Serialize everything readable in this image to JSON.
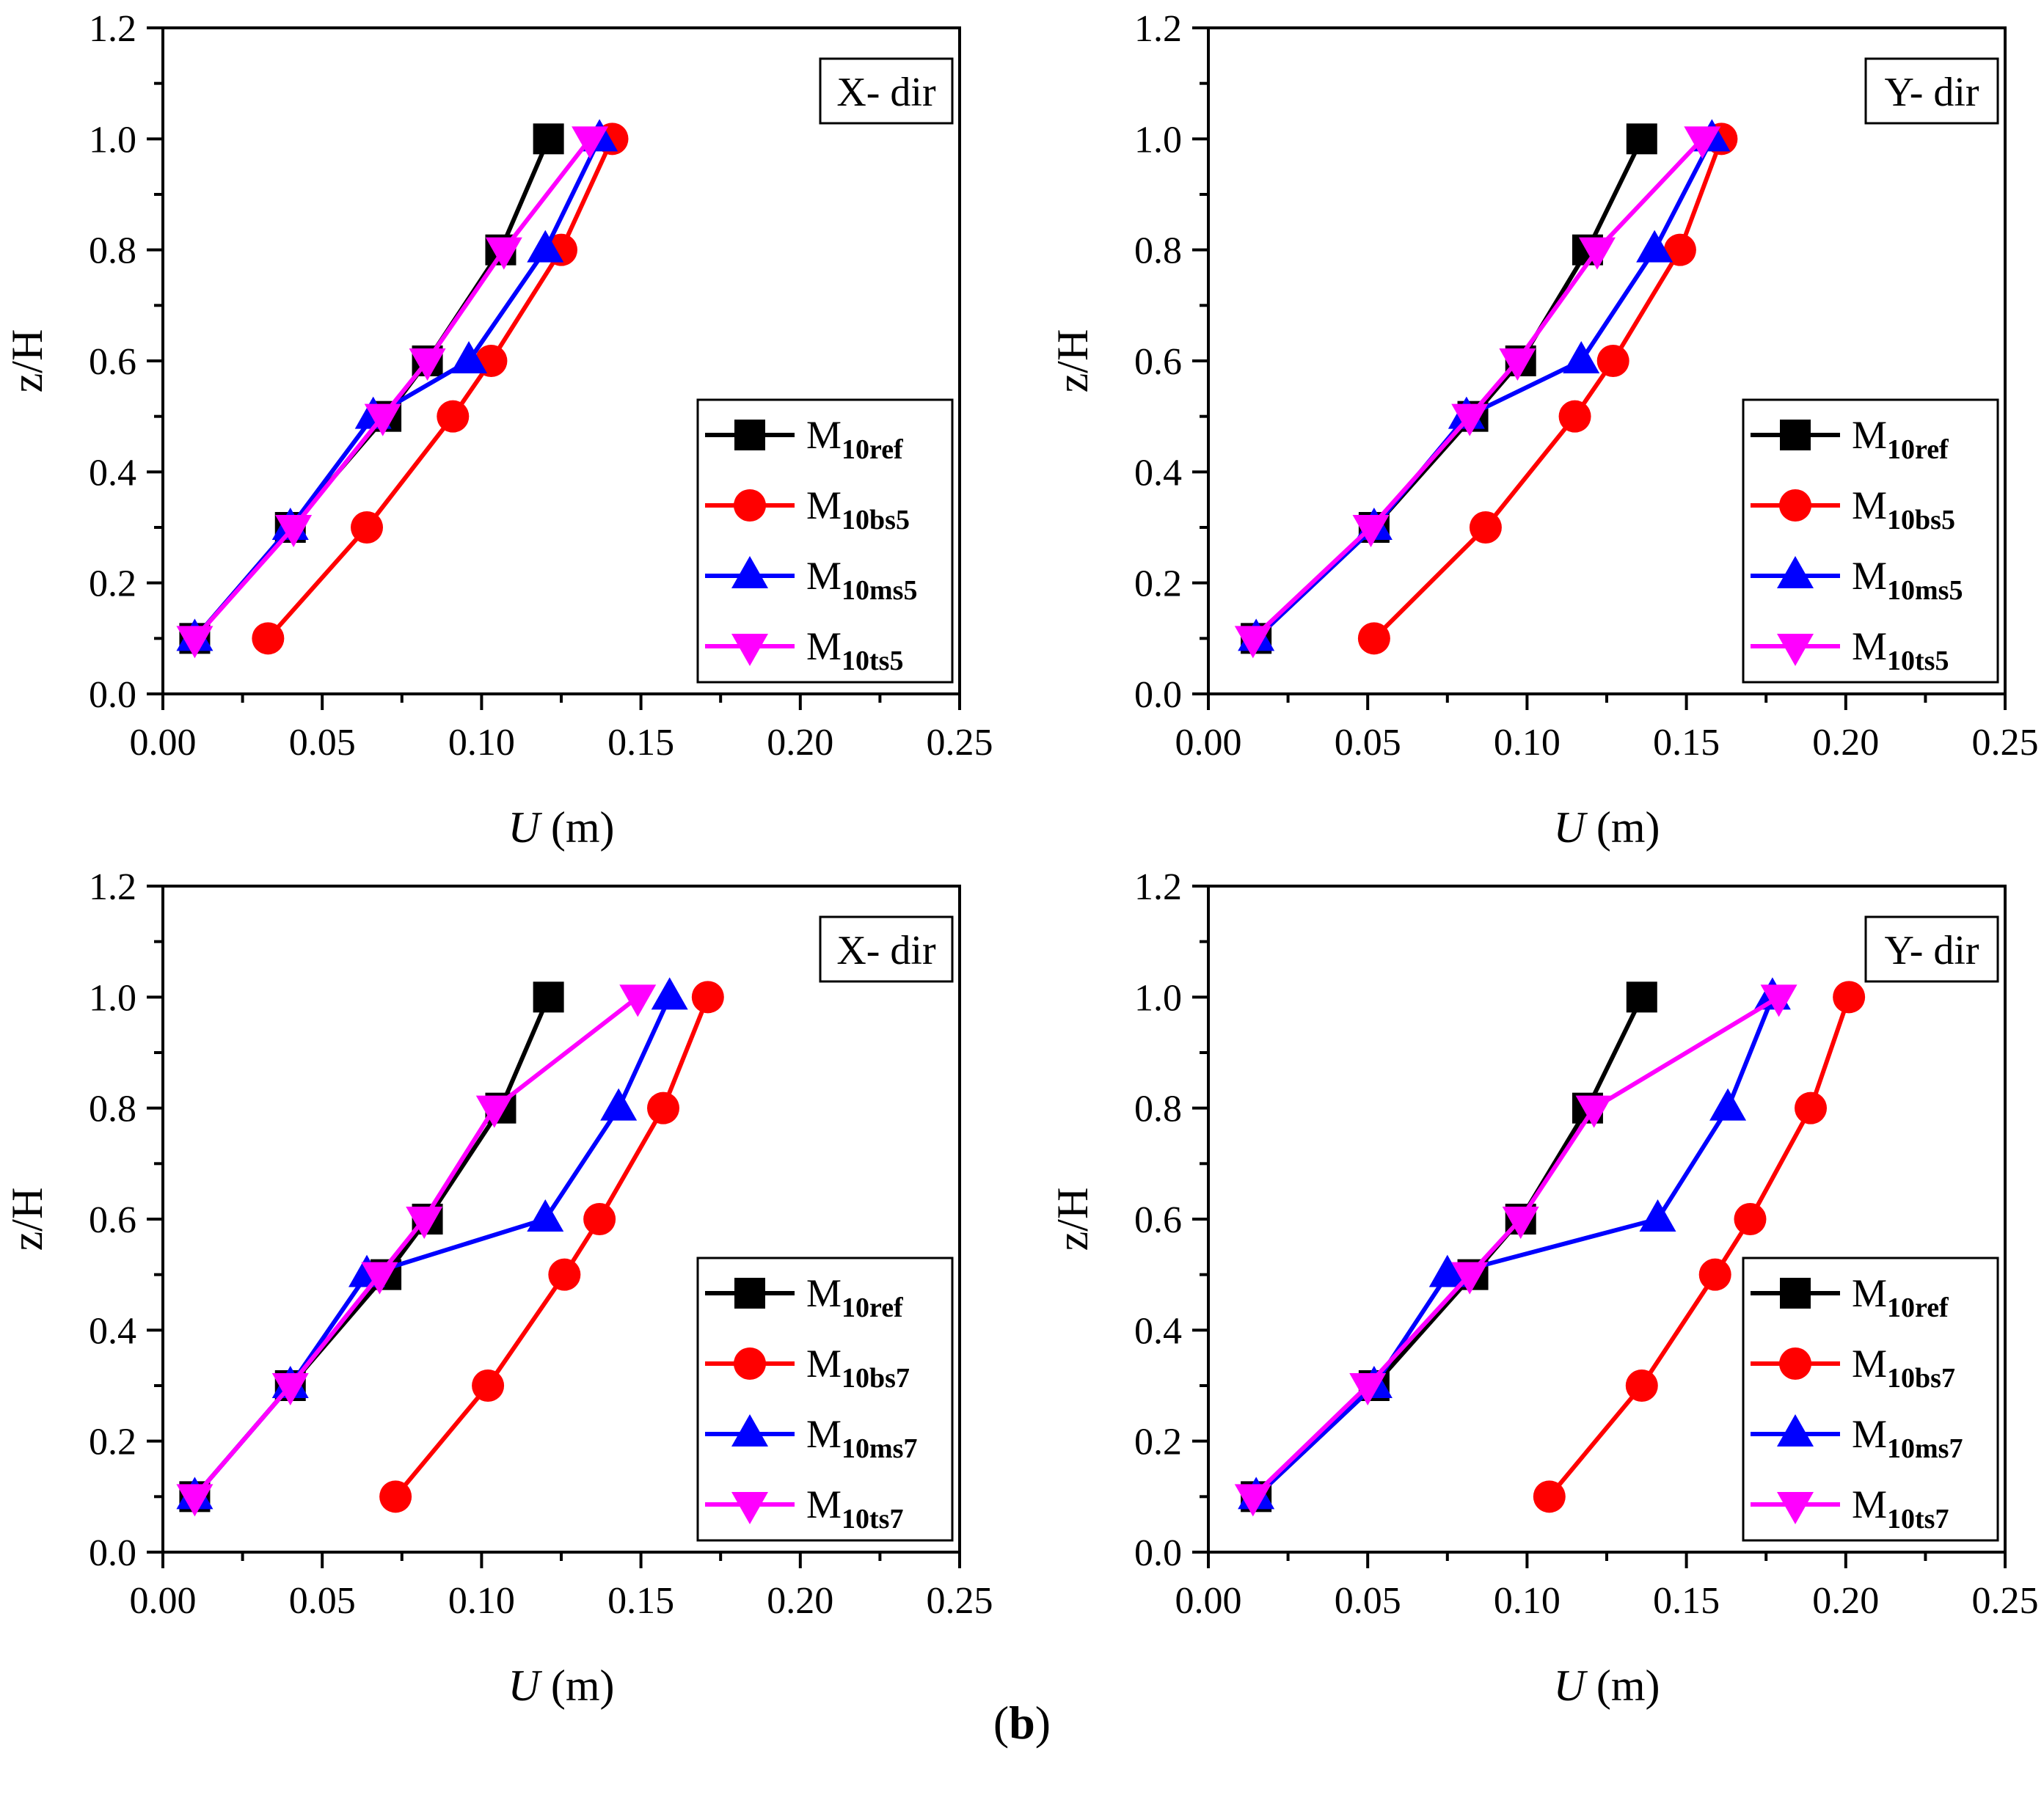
{
  "caption": {
    "open": "(",
    "letter": "b",
    "close": ")"
  },
  "colors": {
    "ref": "#000000",
    "bs": "#ff0000",
    "ms": "#0000ff",
    "ts": "#ff00ff"
  },
  "chart_data": [
    {
      "type": "line",
      "direction_label": "X- dir",
      "xlabel_italic": "U",
      "xlabel_unit": " (m)",
      "ylabel": "z/H",
      "xlim": [
        0,
        0.25
      ],
      "ylim": [
        0,
        1.2
      ],
      "xticks": [
        "0.00",
        "0.05",
        "0.10",
        "0.15",
        "0.20",
        "0.25"
      ],
      "yticks": [
        "0.0",
        "0.2",
        "0.4",
        "0.6",
        "0.8",
        "1.0",
        "1.2"
      ],
      "series": [
        {
          "base": "M",
          "sub": "10ref",
          "marker": "square",
          "color_key": "ref",
          "x": [
            0.01,
            0.04,
            0.07,
            0.083,
            0.106,
            0.121
          ],
          "y": [
            0.1,
            0.3,
            0.5,
            0.6,
            0.8,
            1.0
          ]
        },
        {
          "base": "M",
          "sub": "10bs5",
          "marker": "circle",
          "color_key": "bs",
          "x": [
            0.033,
            0.064,
            0.091,
            0.103,
            0.125,
            0.141
          ],
          "y": [
            0.1,
            0.3,
            0.5,
            0.6,
            0.8,
            1.0
          ]
        },
        {
          "base": "M",
          "sub": "10ms5",
          "marker": "triangle-up",
          "color_key": "ms",
          "x": [
            0.01,
            0.04,
            0.066,
            0.096,
            0.12,
            0.137
          ],
          "y": [
            0.1,
            0.3,
            0.5,
            0.6,
            0.8,
            1.0
          ]
        },
        {
          "base": "M",
          "sub": "10ts5",
          "marker": "triangle-down",
          "color_key": "ts",
          "x": [
            0.01,
            0.041,
            0.069,
            0.083,
            0.107,
            0.134
          ],
          "y": [
            0.1,
            0.3,
            0.5,
            0.6,
            0.8,
            1.0
          ]
        }
      ]
    },
    {
      "type": "line",
      "direction_label": "Y- dir",
      "xlabel_italic": "U",
      "xlabel_unit": " (m)",
      "ylabel": "z/H",
      "xlim": [
        0,
        0.25
      ],
      "ylim": [
        0,
        1.2
      ],
      "xticks": [
        "0.00",
        "0.05",
        "0.10",
        "0.15",
        "0.20",
        "0.25"
      ],
      "yticks": [
        "0.0",
        "0.2",
        "0.4",
        "0.6",
        "0.8",
        "1.0",
        "1.2"
      ],
      "series": [
        {
          "base": "M",
          "sub": "10ref",
          "marker": "square",
          "color_key": "ref",
          "x": [
            0.015,
            0.052,
            0.083,
            0.098,
            0.119,
            0.136
          ],
          "y": [
            0.1,
            0.3,
            0.5,
            0.6,
            0.8,
            1.0
          ]
        },
        {
          "base": "M",
          "sub": "10bs5",
          "marker": "circle",
          "color_key": "bs",
          "x": [
            0.052,
            0.087,
            0.115,
            0.127,
            0.148,
            0.161
          ],
          "y": [
            0.1,
            0.3,
            0.5,
            0.6,
            0.8,
            1.0
          ]
        },
        {
          "base": "M",
          "sub": "10ms5",
          "marker": "triangle-up",
          "color_key": "ms",
          "x": [
            0.015,
            0.052,
            0.081,
            0.117,
            0.14,
            0.158
          ],
          "y": [
            0.1,
            0.3,
            0.5,
            0.6,
            0.8,
            1.0
          ]
        },
        {
          "base": "M",
          "sub": "10ts5",
          "marker": "triangle-down",
          "color_key": "ts",
          "x": [
            0.014,
            0.051,
            0.082,
            0.097,
            0.122,
            0.155
          ],
          "y": [
            0.1,
            0.3,
            0.5,
            0.6,
            0.8,
            1.0
          ]
        }
      ]
    },
    {
      "type": "line",
      "direction_label": "X- dir",
      "xlabel_italic": "U",
      "xlabel_unit": " (m)",
      "ylabel": "z/H",
      "xlim": [
        0,
        0.25
      ],
      "ylim": [
        0,
        1.2
      ],
      "xticks": [
        "0.00",
        "0.05",
        "0.10",
        "0.15",
        "0.20",
        "0.25"
      ],
      "yticks": [
        "0.0",
        "0.2",
        "0.4",
        "0.6",
        "0.8",
        "1.0",
        "1.2"
      ],
      "series": [
        {
          "base": "M",
          "sub": "10ref",
          "marker": "square",
          "color_key": "ref",
          "x": [
            0.01,
            0.04,
            0.07,
            0.083,
            0.106,
            0.121
          ],
          "y": [
            0.1,
            0.3,
            0.5,
            0.6,
            0.8,
            1.0
          ]
        },
        {
          "base": "M",
          "sub": "10bs7",
          "marker": "circle",
          "color_key": "bs",
          "x": [
            0.073,
            0.102,
            0.126,
            0.137,
            0.157,
            0.171
          ],
          "y": [
            0.1,
            0.3,
            0.5,
            0.6,
            0.8,
            1.0
          ]
        },
        {
          "base": "M",
          "sub": "10ms7",
          "marker": "triangle-up",
          "color_key": "ms",
          "x": [
            0.01,
            0.04,
            0.064,
            0.12,
            0.143,
            0.159
          ],
          "y": [
            0.1,
            0.3,
            0.5,
            0.6,
            0.8,
            1.0
          ]
        },
        {
          "base": "M",
          "sub": "10ts7",
          "marker": "triangle-down",
          "color_key": "ts",
          "x": [
            0.01,
            0.04,
            0.068,
            0.082,
            0.104,
            0.149
          ],
          "y": [
            0.1,
            0.3,
            0.5,
            0.6,
            0.8,
            1.0
          ]
        }
      ]
    },
    {
      "type": "line",
      "direction_label": "Y- dir",
      "xlabel_italic": "U",
      "xlabel_unit": " (m)",
      "ylabel": "z/H",
      "xlim": [
        0,
        0.25
      ],
      "ylim": [
        0,
        1.2
      ],
      "xticks": [
        "0.00",
        "0.05",
        "0.10",
        "0.15",
        "0.20",
        "0.25"
      ],
      "yticks": [
        "0.0",
        "0.2",
        "0.4",
        "0.6",
        "0.8",
        "1.0",
        "1.2"
      ],
      "series": [
        {
          "base": "M",
          "sub": "10ref",
          "marker": "square",
          "color_key": "ref",
          "x": [
            0.015,
            0.052,
            0.083,
            0.098,
            0.119,
            0.136
          ],
          "y": [
            0.1,
            0.3,
            0.5,
            0.6,
            0.8,
            1.0
          ]
        },
        {
          "base": "M",
          "sub": "10bs7",
          "marker": "circle",
          "color_key": "bs",
          "x": [
            0.107,
            0.136,
            0.159,
            0.17,
            0.189,
            0.201
          ],
          "y": [
            0.1,
            0.3,
            0.5,
            0.6,
            0.8,
            1.0
          ]
        },
        {
          "base": "M",
          "sub": "10ms7",
          "marker": "triangle-up",
          "color_key": "ms",
          "x": [
            0.015,
            0.052,
            0.075,
            0.141,
            0.163,
            0.177
          ],
          "y": [
            0.1,
            0.3,
            0.5,
            0.6,
            0.8,
            1.0
          ]
        },
        {
          "base": "M",
          "sub": "10ts7",
          "marker": "triangle-down",
          "color_key": "ts",
          "x": [
            0.014,
            0.05,
            0.082,
            0.098,
            0.121,
            0.179
          ],
          "y": [
            0.1,
            0.3,
            0.5,
            0.6,
            0.8,
            1.0
          ]
        }
      ]
    }
  ]
}
